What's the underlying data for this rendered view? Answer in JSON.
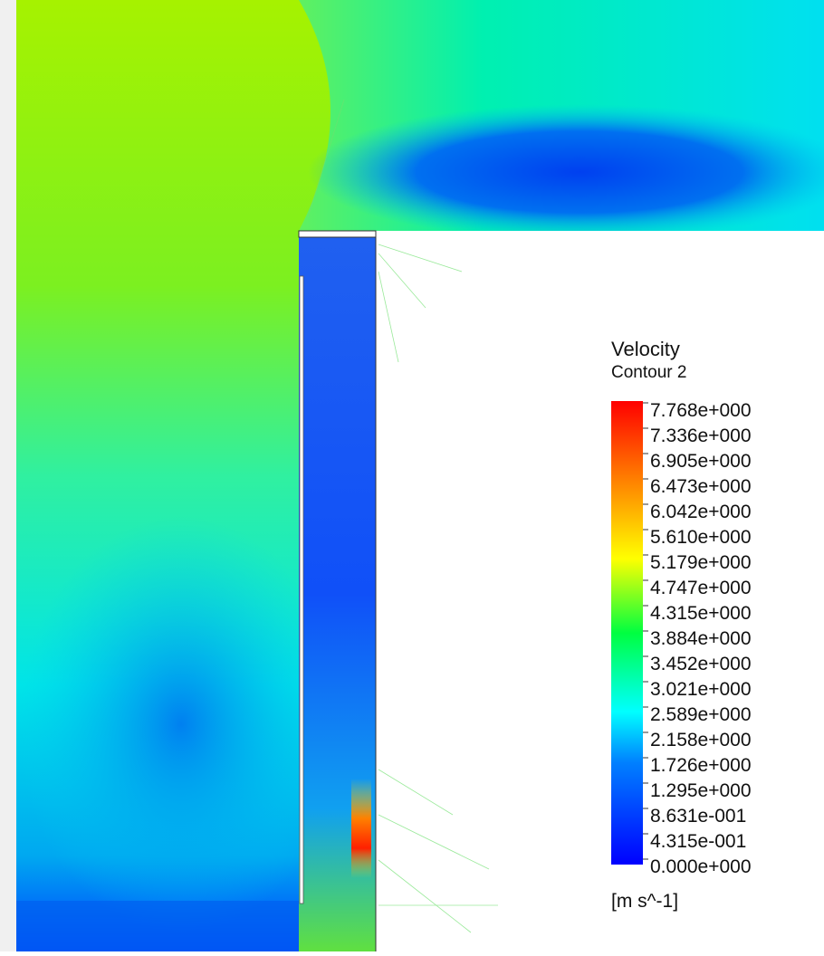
{
  "legend": {
    "title": "Velocity",
    "subtitle": "Contour 2",
    "ticks": [
      "7.768e+000",
      "7.336e+000",
      "6.905e+000",
      "6.473e+000",
      "6.042e+000",
      "5.610e+000",
      "5.179e+000",
      "4.747e+000",
      "4.315e+000",
      "3.884e+000",
      "3.452e+000",
      "3.021e+000",
      "2.589e+000",
      "2.158e+000",
      "1.726e+000",
      "1.295e+000",
      "8.631e-001",
      "4.315e-001",
      "0.000e+000"
    ],
    "unit": "[m s^-1]"
  }
}
